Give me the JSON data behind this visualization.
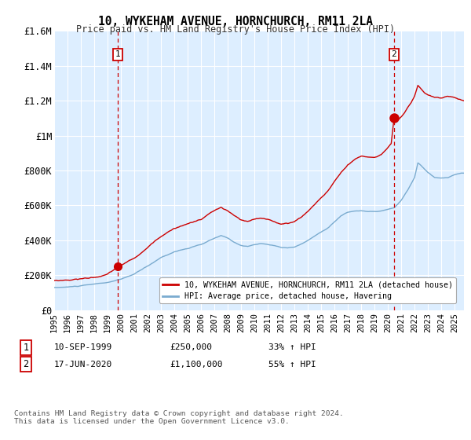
{
  "title": "10, WYKEHAM AVENUE, HORNCHURCH, RM11 2LA",
  "subtitle": "Price paid vs. HM Land Registry's House Price Index (HPI)",
  "legend_line1": "10, WYKEHAM AVENUE, HORNCHURCH, RM11 2LA (detached house)",
  "legend_line2": "HPI: Average price, detached house, Havering",
  "annotation1_label": "1",
  "annotation1_date": "10-SEP-1999",
  "annotation1_price": "£250,000",
  "annotation1_hpi": "33% ↑ HPI",
  "annotation2_label": "2",
  "annotation2_date": "17-JUN-2020",
  "annotation2_price": "£1,100,000",
  "annotation2_hpi": "55% ↑ HPI",
  "footnote": "Contains HM Land Registry data © Crown copyright and database right 2024.\nThis data is licensed under the Open Government Licence v3.0.",
  "red_color": "#cc0000",
  "blue_color": "#7aabcf",
  "bg_color": "#ddeeff",
  "annotation_color": "#cc0000",
  "ylim": [
    0,
    1600000
  ],
  "yticks": [
    0,
    200000,
    400000,
    600000,
    800000,
    1000000,
    1200000,
    1400000,
    1600000
  ],
  "ytick_labels": [
    "£0",
    "£200K",
    "£400K",
    "£600K",
    "£800K",
    "£1M",
    "£1.2M",
    "£1.4M",
    "£1.6M"
  ],
  "sale1_x": 1999.75,
  "sale1_y": 250000,
  "sale2_x": 2020.46,
  "sale2_y": 1100000,
  "vline1_x": 1999.75,
  "vline2_x": 2020.46,
  "xmin": 1995.0,
  "xmax": 2025.7
}
